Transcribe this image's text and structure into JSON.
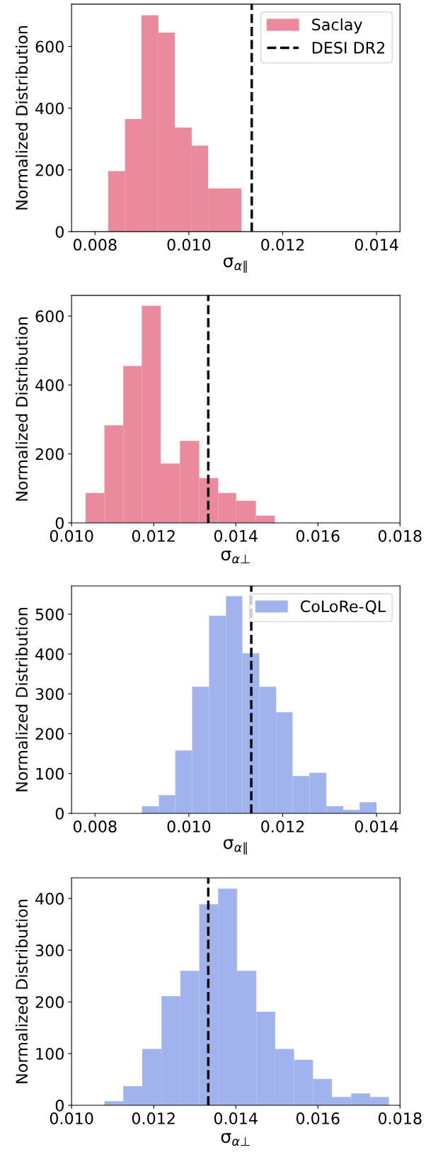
{
  "chart_data": [
    {
      "type": "histogram",
      "xlabel": "σ$_{α∥}$",
      "ylabel": "Normalized Distribution",
      "bins": [
        0.00828,
        0.00864,
        0.00899,
        0.00935,
        0.0097,
        0.01006,
        0.01041,
        0.01077,
        0.01112
      ],
      "series": [
        {
          "name": "Saclay",
          "color": "#ec8a9d",
          "values": [
            196,
            365,
            701,
            645,
            337,
            279,
            140,
            140
          ]
        }
      ],
      "xlim": [
        0.0075,
        0.0145
      ],
      "xticks": [
        {
          "value": 0.008,
          "label": "0.008"
        },
        {
          "value": 0.01,
          "label": "0.010"
        },
        {
          "value": 0.012,
          "label": "0.012"
        },
        {
          "value": 0.014,
          "label": "0.014"
        }
      ],
      "ylim": [
        0,
        737
      ],
      "yticks": [
        0,
        200,
        400,
        600
      ],
      "ref_lines": [
        {
          "axis": "x",
          "value": 0.01134,
          "label": "DESI DR2",
          "color": "#000000",
          "line_style": "dashed"
        }
      ],
      "legend": "top right"
    },
    {
      "type": "histogram",
      "xlabel": "σ$_{α⊥}$",
      "ylabel": "Normalized Distribution",
      "bins": [
        0.01034,
        0.0108,
        0.01126,
        0.01171,
        0.01217,
        0.01264,
        0.01311,
        0.01357,
        0.01401,
        0.01449,
        0.01495
      ],
      "series": [
        {
          "color": "#ec8a9d",
          "values": [
            87,
            283,
            455,
            630,
            172,
            238,
            130,
            87,
            64,
            21
          ]
        }
      ],
      "xlim": [
        0.01,
        0.018
      ],
      "xticks": [
        {
          "value": 0.01,
          "label": "0.010"
        },
        {
          "value": 0.012,
          "label": "0.012"
        },
        {
          "value": 0.014,
          "label": "0.014"
        },
        {
          "value": 0.016,
          "label": "0.016"
        },
        {
          "value": 0.018,
          "label": "0.018"
        }
      ],
      "ylim": [
        0,
        660
      ],
      "yticks": [
        0,
        200,
        400,
        600
      ],
      "ref_lines": [
        {
          "axis": "x",
          "value": 0.01333,
          "color": "#000000",
          "line_style": "dashed"
        }
      ]
    },
    {
      "type": "histogram",
      "xlabel": "σ$_{α∥}$",
      "ylabel": "Normalized Distribution",
      "bins": [
        0.009,
        0.00936,
        0.00971,
        0.01007,
        0.01043,
        0.01079,
        0.01114,
        0.0115,
        0.01186,
        0.01221,
        0.01257,
        0.01293,
        0.01329,
        0.01364,
        0.014
      ],
      "series": [
        {
          "name": "CoLoRe-QL",
          "color": "#a0b3ec",
          "values": [
            18,
            46,
            158,
            318,
            496,
            545,
            402,
            318,
            254,
            94,
            102,
            18,
            9,
            28
          ]
        }
      ],
      "xlim": [
        0.0075,
        0.0145
      ],
      "xticks": [
        {
          "value": 0.008,
          "label": "0.008"
        },
        {
          "value": 0.01,
          "label": "0.010"
        },
        {
          "value": 0.012,
          "label": "0.012"
        },
        {
          "value": 0.014,
          "label": "0.014"
        }
      ],
      "ylim": [
        0,
        571
      ],
      "yticks": [
        0,
        100,
        200,
        300,
        400,
        500
      ],
      "ref_lines": [
        {
          "axis": "x",
          "value": 0.01133,
          "color": "#000000",
          "line_style": "dashed"
        }
      ],
      "legend": "top right"
    },
    {
      "type": "histogram",
      "xlabel": "σ$_{α⊥}$",
      "ylabel": "Normalized Distribution",
      "bins": [
        0.0108,
        0.01126,
        0.01172,
        0.01219,
        0.01265,
        0.01311,
        0.01357,
        0.01403,
        0.0145,
        0.01496,
        0.01542,
        0.01588,
        0.01634,
        0.01681,
        0.01727,
        0.01773
      ],
      "series": [
        {
          "color": "#a0b3ec",
          "values": [
            8,
            37,
            109,
            211,
            260,
            389,
            419,
            260,
            181,
            109,
            88,
            51,
            16,
            23,
            16
          ]
        }
      ],
      "xlim": [
        0.01,
        0.018
      ],
      "xticks": [
        {
          "value": 0.01,
          "label": "0.010"
        },
        {
          "value": 0.012,
          "label": "0.012"
        },
        {
          "value": 0.014,
          "label": "0.014"
        },
        {
          "value": 0.016,
          "label": "0.016"
        },
        {
          "value": 0.018,
          "label": "0.018"
        }
      ],
      "ylim": [
        0,
        440
      ],
      "yticks": [
        0,
        100,
        200,
        300,
        400
      ],
      "ref_lines": [
        {
          "axis": "x",
          "value": 0.01333,
          "color": "#000000",
          "line_style": "dashed"
        }
      ]
    }
  ]
}
